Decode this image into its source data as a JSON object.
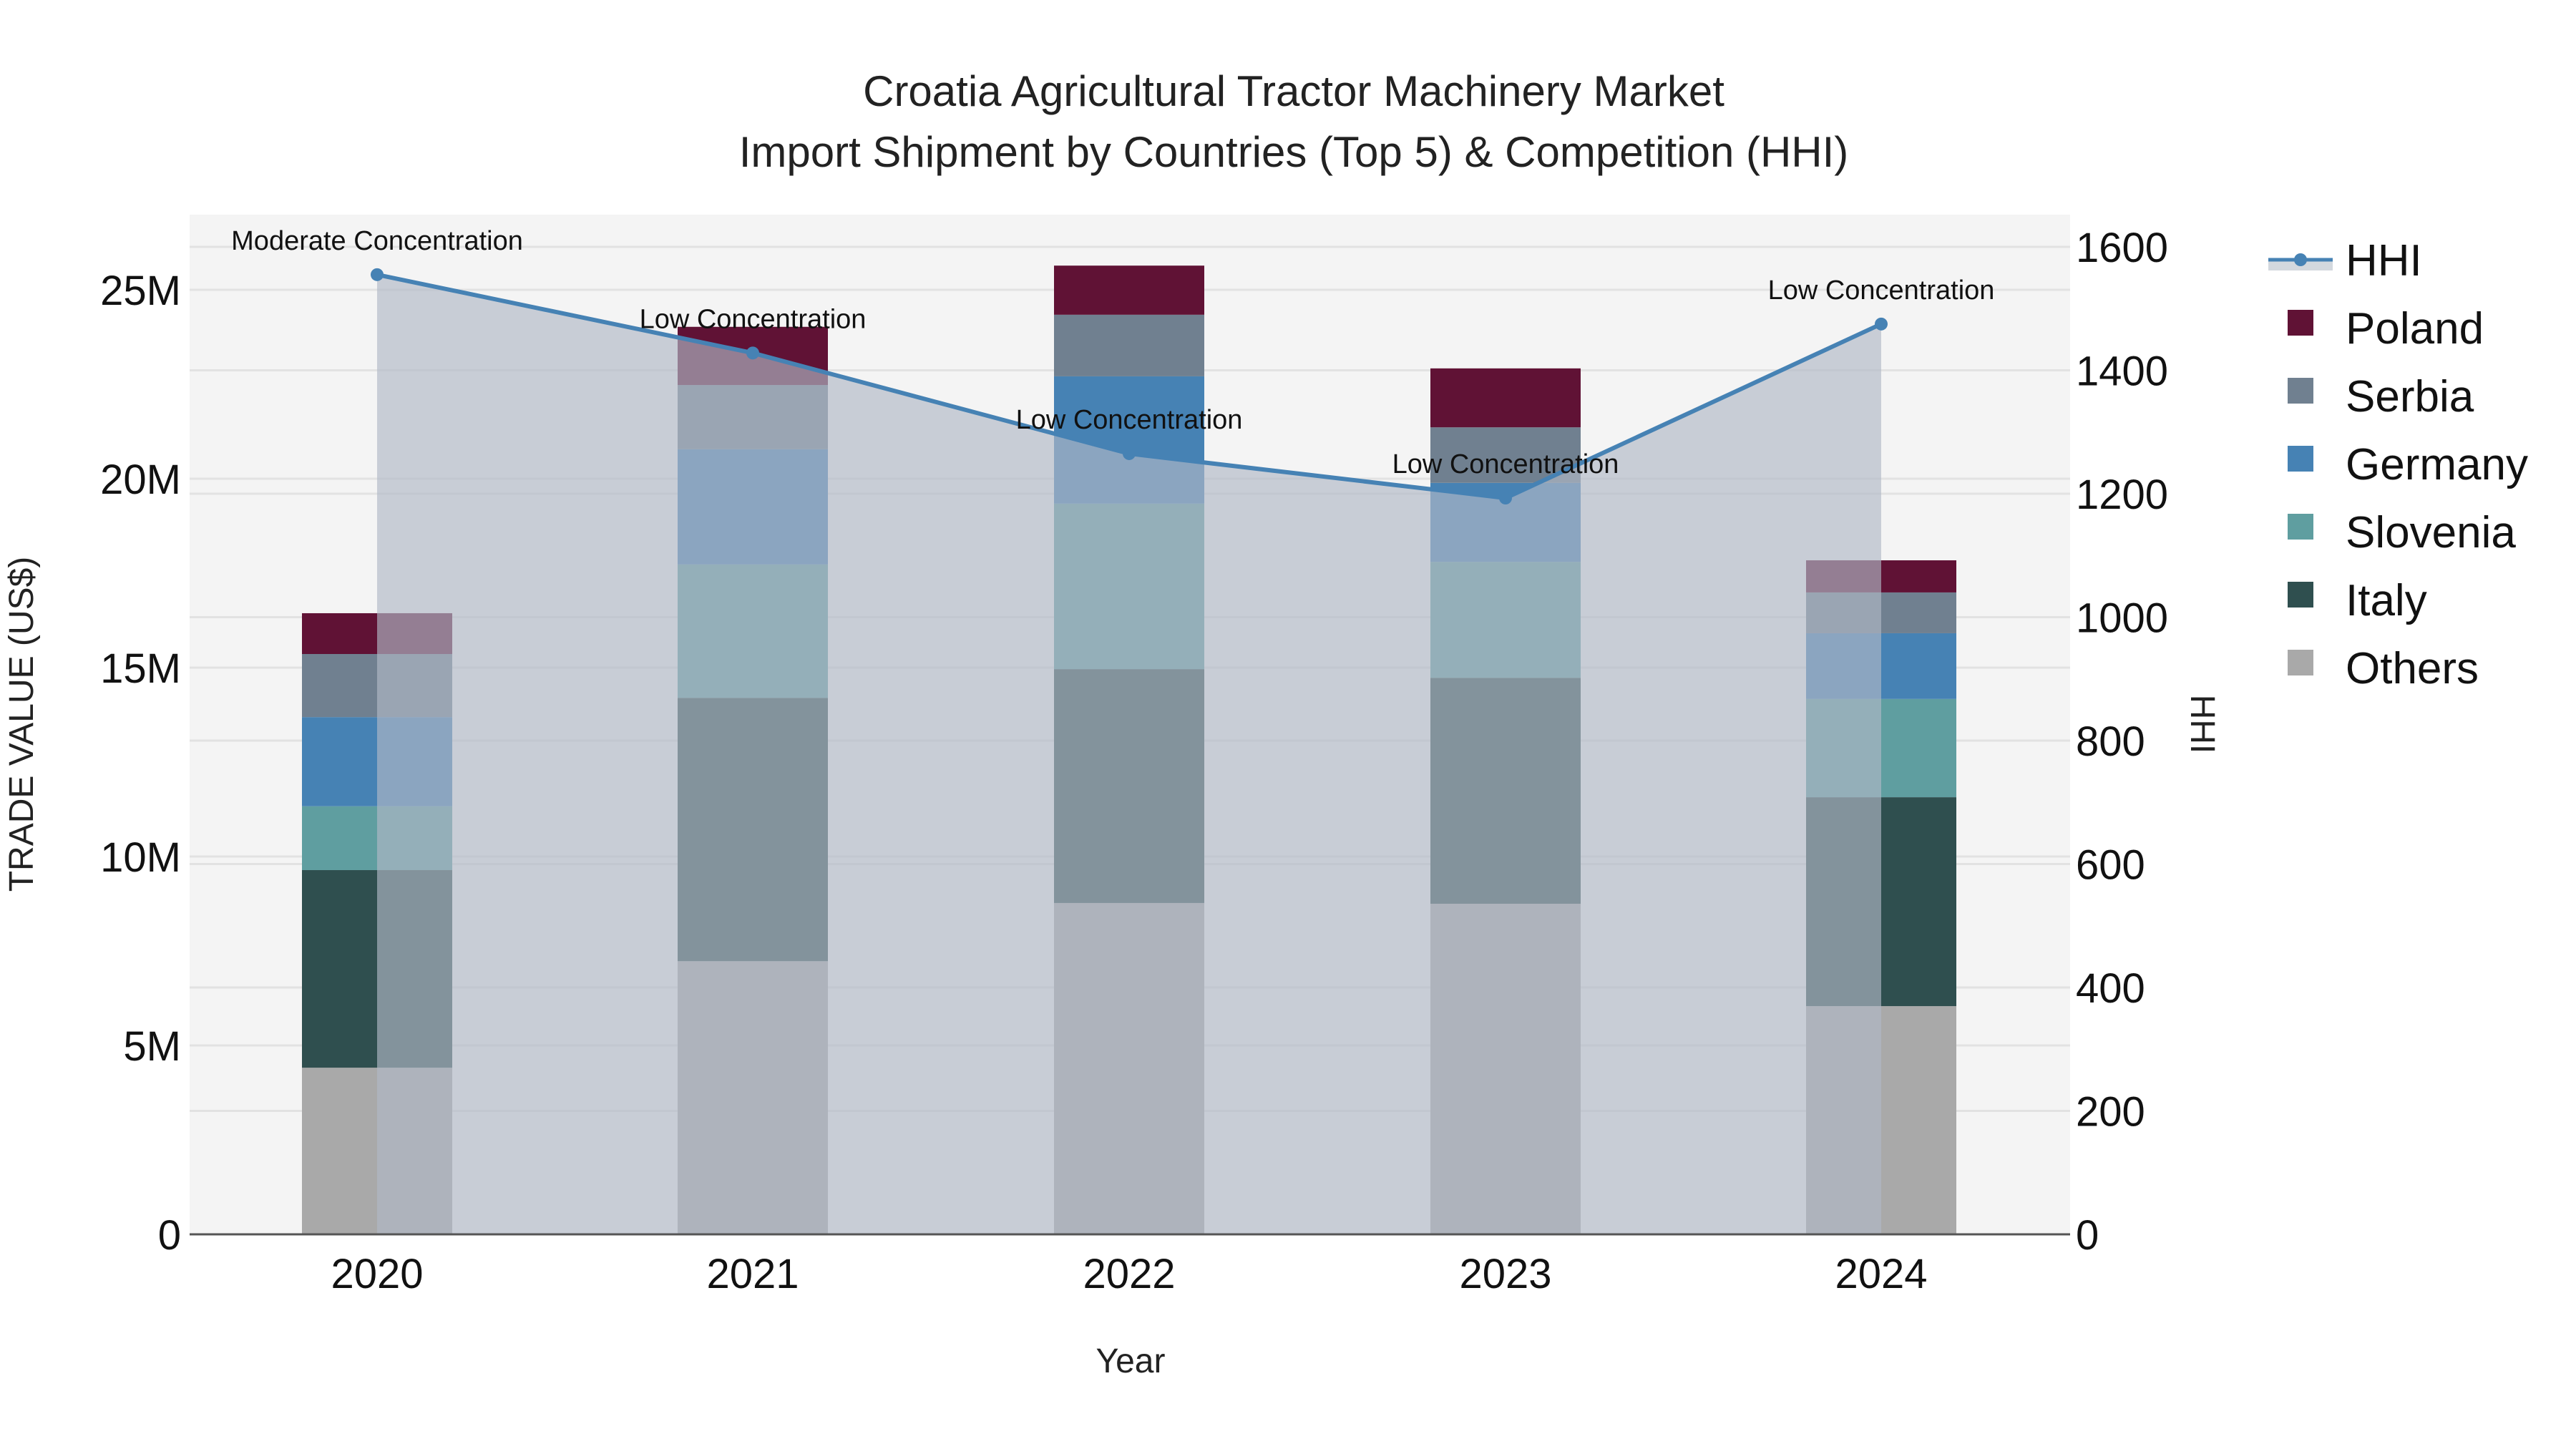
{
  "chart_data": {
    "type": "bar",
    "subtype": "stacked bar with secondary-axis line/area",
    "title": "Croatia Agricultural Tractor Machinery Market",
    "subtitle": "Import Shipment by Countries (Top 5) & Competition (HHI)",
    "xlabel": "Year",
    "ylabel": "TRADE VALUE (US$)",
    "y2label": "HHI",
    "categories": [
      "2020",
      "2021",
      "2022",
      "2023",
      "2024"
    ],
    "ylim": [
      0,
      27000000
    ],
    "y_ticks": [
      {
        "value": 0,
        "label": "0"
      },
      {
        "value": 5000000,
        "label": "5M"
      },
      {
        "value": 10000000,
        "label": "10M"
      },
      {
        "value": 15000000,
        "label": "15M"
      },
      {
        "value": 20000000,
        "label": "20M"
      },
      {
        "value": 25000000,
        "label": "25M"
      }
    ],
    "y2lim": [
      0,
      1730
    ],
    "y2_ticks": [
      0,
      200,
      400,
      600,
      800,
      1000,
      1200,
      1400,
      1600
    ],
    "grid": true,
    "legend_position": "right",
    "series": [
      {
        "name": "Others",
        "color": "#A9A9A9",
        "values": [
          4410000,
          7230000,
          8770000,
          8750000,
          6040000
        ]
      },
      {
        "name": "Italy",
        "color": "#2F4F4F",
        "values": [
          5230000,
          6970000,
          6190000,
          5980000,
          5530000
        ]
      },
      {
        "name": "Slovenia",
        "color": "#5F9EA0",
        "values": [
          1690000,
          3530000,
          4380000,
          3070000,
          2600000
        ]
      },
      {
        "name": "Germany",
        "color": "#4682B4",
        "values": [
          2360000,
          3050000,
          3370000,
          2090000,
          1740000
        ]
      },
      {
        "name": "Serbia",
        "color": "#708090",
        "values": [
          1670000,
          1700000,
          1630000,
          1470000,
          1080000
        ]
      },
      {
        "name": "Poland",
        "color": "#601235",
        "values": [
          1080000,
          1540000,
          1300000,
          1560000,
          850000
        ]
      }
    ],
    "line_series": {
      "name": "HHI",
      "axis": "y2",
      "color": "#4682B4",
      "fill_color": "rgba(176,184,198,0.65)",
      "values": [
        1555,
        1428,
        1265,
        1193,
        1475
      ],
      "annotations": [
        "Moderate Concentration",
        "Low Concentration",
        "Low Concentration",
        "Low Concentration",
        "Low Concentration"
      ]
    }
  },
  "legend": {
    "items": [
      {
        "label": "HHI",
        "kind": "line",
        "color": "#4682B4"
      },
      {
        "label": "Poland",
        "kind": "box",
        "color": "#601235"
      },
      {
        "label": "Serbia",
        "kind": "box",
        "color": "#708090"
      },
      {
        "label": "Germany",
        "kind": "box",
        "color": "#4682B4"
      },
      {
        "label": "Slovenia",
        "kind": "box",
        "color": "#5F9EA0"
      },
      {
        "label": "Italy",
        "kind": "box",
        "color": "#2F4F4F"
      },
      {
        "label": "Others",
        "kind": "box",
        "color": "#A9A9A9"
      }
    ]
  },
  "colors": {
    "plot_bg": "#F4F4F4",
    "grid": "#E2E2E2",
    "axis_line": "#555555",
    "page_bg": "#FFFFFF"
  }
}
